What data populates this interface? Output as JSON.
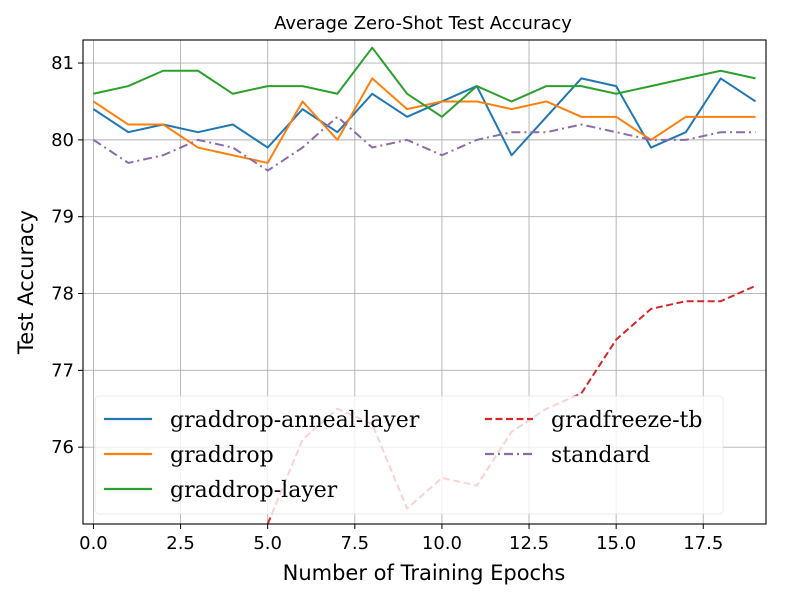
{
  "chart_data": {
    "type": "line",
    "title": "Average Zero-Shot Test Accuracy",
    "xlabel": "Number of Training Epochs",
    "ylabel": "Test Accuracy",
    "xlim": [
      -0.3,
      19.3
    ],
    "ylim": [
      75.0,
      81.3
    ],
    "xticks": [
      0.0,
      2.5,
      5.0,
      7.5,
      10.0,
      12.5,
      15.0,
      17.5
    ],
    "xtick_labels": [
      "0.0",
      "2.5",
      "5.0",
      "7.5",
      "10.0",
      "12.5",
      "15.0",
      "17.5"
    ],
    "yticks": [
      76,
      77,
      78,
      79,
      80,
      81
    ],
    "ytick_labels": [
      "76",
      "77",
      "78",
      "79",
      "80",
      "81"
    ],
    "grid": true,
    "legend_position": "lower-left",
    "x": [
      0,
      1,
      2,
      3,
      4,
      5,
      6,
      7,
      8,
      9,
      10,
      11,
      12,
      13,
      14,
      15,
      16,
      17,
      18,
      19
    ],
    "series": [
      {
        "name": "graddrop-anneal-layer",
        "color": "#1f77b4",
        "style": "solid",
        "values": [
          80.4,
          80.1,
          80.2,
          80.1,
          80.2,
          79.9,
          80.4,
          80.1,
          80.6,
          80.3,
          80.5,
          80.7,
          79.8,
          80.3,
          80.8,
          80.7,
          79.9,
          80.1,
          80.8,
          80.5
        ]
      },
      {
        "name": "graddrop",
        "color": "#ff7f0e",
        "style": "solid",
        "values": [
          80.5,
          80.2,
          80.2,
          79.9,
          79.8,
          79.7,
          80.5,
          80.0,
          80.8,
          80.4,
          80.5,
          80.5,
          80.4,
          80.5,
          80.3,
          80.3,
          80.0,
          80.3,
          80.3,
          80.3
        ]
      },
      {
        "name": "graddrop-layer",
        "color": "#2ca02c",
        "style": "solid",
        "values": [
          80.6,
          80.7,
          80.9,
          80.9,
          80.6,
          80.7,
          80.7,
          80.6,
          81.2,
          80.6,
          80.3,
          80.7,
          80.5,
          80.7,
          80.7,
          80.6,
          80.7,
          80.8,
          80.9,
          80.8
        ]
      },
      {
        "name": "gradfreeze-tb",
        "color": "#d62728",
        "style": "dashed",
        "values": [
          null,
          null,
          null,
          null,
          null,
          75.0,
          76.1,
          76.5,
          76.3,
          75.2,
          75.6,
          75.5,
          76.2,
          76.5,
          76.7,
          77.4,
          77.8,
          77.9,
          77.9,
          78.1
        ]
      },
      {
        "name": "standard",
        "color": "#8c6ba8",
        "style": "dashdot",
        "values": [
          80.0,
          79.7,
          79.8,
          80.0,
          79.9,
          79.6,
          79.9,
          80.3,
          79.9,
          80.0,
          79.8,
          80.0,
          80.1,
          80.1,
          80.2,
          80.1,
          80.0,
          80.0,
          80.1,
          80.1
        ]
      }
    ],
    "legend_columns": [
      [
        "graddrop-anneal-layer",
        "graddrop",
        "graddrop-layer"
      ],
      [
        "gradfreeze-tb",
        "standard"
      ]
    ]
  }
}
